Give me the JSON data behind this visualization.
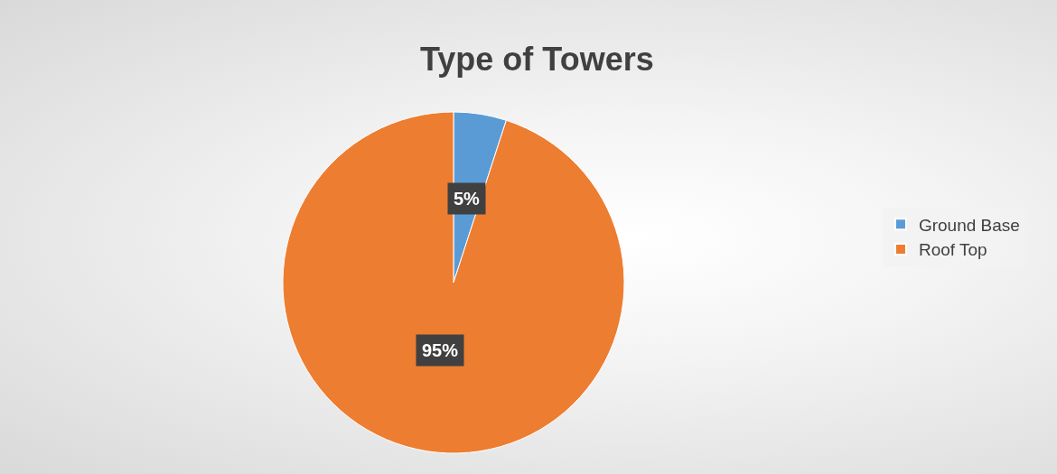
{
  "chart_data": {
    "type": "pie",
    "title": "Type of Towers",
    "categories": [
      "Ground Base",
      "Roof Top"
    ],
    "values": [
      5,
      95
    ],
    "colors": [
      "#5b9bd5",
      "#ed7d31"
    ],
    "value_labels": [
      "5%",
      "95%"
    ],
    "legend": "right"
  }
}
